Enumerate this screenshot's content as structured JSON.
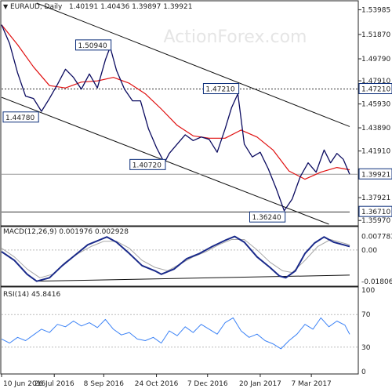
{
  "header": {
    "symbol": "EURAUD, Daily",
    "ohlc": "1.40191 1.40436 1.39897 1.39921",
    "arrow": "▼"
  },
  "watermark": "ActionForex.com",
  "colors": {
    "price": "#0b0b60",
    "ma": "#e01010",
    "channel": "#111111",
    "macd": "#1a2a8a",
    "signal": "#a7a7a7",
    "rsi": "#3b82f6",
    "label_border": "#0b2e7a",
    "hline": "#333333"
  },
  "chart_data": [
    {
      "panel": "price",
      "type": "line",
      "title": "EURAUD, Daily",
      "y_ticks": [
        "1.53985",
        "1.51870",
        "1.49790",
        "1.47910",
        "1.45930",
        "1.43890",
        "1.41910",
        "1.39921",
        "1.37921",
        "1.36710",
        "1.35970"
      ],
      "ylim": [
        1.3565,
        1.5455
      ],
      "x_ticks": [
        "10 Jun 2016",
        "26 Jul 2016",
        "8 Sep 2016",
        "24 Oct 2016",
        "7 Dec 2016",
        "20 Jan 2017",
        "7 Mar 2017"
      ],
      "x_tick_index": [
        0,
        33,
        64,
        97,
        129,
        162,
        194
      ],
      "levels": [
        {
          "label": "1.50940",
          "value": 1.5094,
          "index": 68
        },
        {
          "label": "1.47210",
          "value": 1.4721,
          "index": 148
        },
        {
          "label": "1.44780",
          "value": 1.4478,
          "index": 0
        },
        {
          "label": "1.40720",
          "value": 1.4072,
          "index": 102
        },
        {
          "label": "1.36240",
          "value": 1.3624,
          "index": 177
        }
      ],
      "right_labels": [
        {
          "label": "1.47210",
          "value": 1.4721
        },
        {
          "label": "1.39921",
          "value": 1.39921
        },
        {
          "label": "1.36710",
          "value": 1.3671
        }
      ],
      "series": [
        {
          "role": "price",
          "points": [
            [
              0,
              1.527
            ],
            [
              5,
              1.511
            ],
            [
              10,
              1.486
            ],
            [
              15,
              1.466
            ],
            [
              20,
              1.464
            ],
            [
              25,
              1.453
            ],
            [
              30,
              1.464
            ],
            [
              35,
              1.476
            ],
            [
              40,
              1.489
            ],
            [
              45,
              1.482
            ],
            [
              50,
              1.472
            ],
            [
              55,
              1.485
            ],
            [
              60,
              1.473
            ],
            [
              65,
              1.497
            ],
            [
              68,
              1.508
            ],
            [
              72,
              1.488
            ],
            [
              77,
              1.472
            ],
            [
              82,
              1.462
            ],
            [
              87,
              1.462
            ],
            [
              92,
              1.438
            ],
            [
              97,
              1.422
            ],
            [
              102,
              1.409
            ],
            [
              105,
              1.417
            ],
            [
              110,
              1.425
            ],
            [
              115,
              1.433
            ],
            [
              120,
              1.428
            ],
            [
              125,
              1.431
            ],
            [
              130,
              1.429
            ],
            [
              135,
              1.418
            ],
            [
              140,
              1.438
            ],
            [
              144,
              1.456
            ],
            [
              148,
              1.468
            ],
            [
              152,
              1.425
            ],
            [
              157,
              1.414
            ],
            [
              162,
              1.418
            ],
            [
              167,
              1.404
            ],
            [
              172,
              1.387
            ],
            [
              177,
              1.368
            ],
            [
              182,
              1.378
            ],
            [
              187,
              1.397
            ],
            [
              192,
              1.409
            ],
            [
              197,
              1.401
            ],
            [
              202,
              1.42
            ],
            [
              206,
              1.409
            ],
            [
              210,
              1.417
            ],
            [
              214,
              1.412
            ],
            [
              218,
              1.3992
            ]
          ]
        },
        {
          "role": "moving-average",
          "points": [
            [
              0,
              1.527
            ],
            [
              10,
              1.51
            ],
            [
              20,
              1.491
            ],
            [
              30,
              1.475
            ],
            [
              40,
              1.473
            ],
            [
              50,
              1.478
            ],
            [
              60,
              1.479
            ],
            [
              70,
              1.482
            ],
            [
              80,
              1.477
            ],
            [
              90,
              1.468
            ],
            [
              100,
              1.455
            ],
            [
              110,
              1.441
            ],
            [
              120,
              1.432
            ],
            [
              130,
              1.43
            ],
            [
              140,
              1.43
            ],
            [
              150,
              1.437
            ],
            [
              160,
              1.431
            ],
            [
              170,
              1.42
            ],
            [
              180,
              1.402
            ],
            [
              190,
              1.395
            ],
            [
              200,
              1.401
            ],
            [
              210,
              1.405
            ],
            [
              218,
              1.403
            ]
          ]
        }
      ],
      "channel": {
        "upper": [
          [
            22,
            1.5455
          ],
          [
            218,
            1.44
          ]
        ],
        "lower": [
          [
            0,
            1.465
          ],
          [
            205,
            1.3565
          ]
        ],
        "support": [
          [
            0,
            1.367
          ],
          [
            218,
            1.367
          ]
        ]
      },
      "xlim": [
        0,
        218
      ]
    },
    {
      "panel": "macd",
      "type": "line",
      "title": "MACD(12,26,9) 0.001976 0.002928",
      "y_ticks": [
        "0.007783",
        "0.00",
        "-0.018064"
      ],
      "ylim": [
        -0.0195,
        0.0085
      ],
      "series": [
        {
          "name": "MACD",
          "role": "macd",
          "points": [
            [
              0,
              -0.001
            ],
            [
              8,
              -0.006
            ],
            [
              16,
              -0.014
            ],
            [
              22,
              -0.018
            ],
            [
              30,
              -0.016
            ],
            [
              38,
              -0.009
            ],
            [
              46,
              -0.003
            ],
            [
              54,
              0.003
            ],
            [
              62,
              0.006
            ],
            [
              66,
              0.0075
            ],
            [
              72,
              0.0045
            ],
            [
              80,
              -0.002
            ],
            [
              88,
              -0.009
            ],
            [
              96,
              -0.012
            ],
            [
              100,
              -0.014
            ],
            [
              108,
              -0.011
            ],
            [
              116,
              -0.005
            ],
            [
              124,
              -0.002
            ],
            [
              132,
              0.002
            ],
            [
              140,
              0.0055
            ],
            [
              146,
              0.0078
            ],
            [
              152,
              0.0045
            ],
            [
              160,
              -0.004
            ],
            [
              168,
              -0.01
            ],
            [
              174,
              -0.015
            ],
            [
              178,
              -0.016
            ],
            [
              184,
              -0.012
            ],
            [
              190,
              -0.002
            ],
            [
              196,
              0.004
            ],
            [
              202,
              0.0075
            ],
            [
              208,
              0.0045
            ],
            [
              214,
              0.003
            ],
            [
              218,
              0.002
            ]
          ]
        },
        {
          "name": "Signal",
          "role": "signal",
          "points": [
            [
              0,
              0.001
            ],
            [
              8,
              -0.004
            ],
            [
              16,
              -0.011
            ],
            [
              24,
              -0.016
            ],
            [
              32,
              -0.014
            ],
            [
              40,
              -0.007
            ],
            [
              48,
              -0.002
            ],
            [
              56,
              0.002
            ],
            [
              64,
              0.005
            ],
            [
              72,
              0.005
            ],
            [
              80,
              0.001
            ],
            [
              88,
              -0.006
            ],
            [
              96,
              -0.01
            ],
            [
              104,
              -0.012
            ],
            [
              112,
              -0.008
            ],
            [
              120,
              -0.004
            ],
            [
              128,
              -0.001
            ],
            [
              136,
              0.003
            ],
            [
              144,
              0.006
            ],
            [
              152,
              0.006
            ],
            [
              160,
              0.0
            ],
            [
              168,
              -0.007
            ],
            [
              176,
              -0.012
            ],
            [
              182,
              -0.013
            ],
            [
              190,
              -0.006
            ],
            [
              198,
              0.002
            ],
            [
              206,
              0.006
            ],
            [
              212,
              0.0045
            ],
            [
              218,
              0.003
            ]
          ]
        }
      ],
      "trendline": [
        [
          22,
          -0.018
        ],
        [
          218,
          -0.0145
        ]
      ],
      "xlim": [
        0,
        218
      ]
    },
    {
      "panel": "rsi",
      "type": "line",
      "title": "RSI(14) 45.8416",
      "y_ticks": [
        "100",
        "70",
        "30",
        "0"
      ],
      "ylim": [
        0,
        100
      ],
      "series": [
        {
          "name": "RSI",
          "role": "rsi",
          "points": [
            [
              0,
              40
            ],
            [
              5,
              35
            ],
            [
              10,
              42
            ],
            [
              15,
              38
            ],
            [
              20,
              45
            ],
            [
              25,
              52
            ],
            [
              30,
              48
            ],
            [
              35,
              58
            ],
            [
              40,
              55
            ],
            [
              45,
              62
            ],
            [
              50,
              56
            ],
            [
              55,
              60
            ],
            [
              60,
              54
            ],
            [
              65,
              64
            ],
            [
              70,
              52
            ],
            [
              75,
              45
            ],
            [
              80,
              48
            ],
            [
              85,
              40
            ],
            [
              90,
              38
            ],
            [
              95,
              42
            ],
            [
              100,
              35
            ],
            [
              105,
              50
            ],
            [
              110,
              44
            ],
            [
              115,
              55
            ],
            [
              120,
              48
            ],
            [
              125,
              58
            ],
            [
              130,
              52
            ],
            [
              135,
              46
            ],
            [
              140,
              60
            ],
            [
              145,
              66
            ],
            [
              150,
              50
            ],
            [
              155,
              42
            ],
            [
              160,
              46
            ],
            [
              165,
              38
            ],
            [
              170,
              34
            ],
            [
              175,
              28
            ],
            [
              180,
              38
            ],
            [
              185,
              46
            ],
            [
              190,
              58
            ],
            [
              195,
              52
            ],
            [
              200,
              66
            ],
            [
              205,
              55
            ],
            [
              210,
              62
            ],
            [
              215,
              57
            ],
            [
              218,
              45.8
            ]
          ]
        }
      ],
      "xlim": [
        0,
        218
      ]
    }
  ]
}
